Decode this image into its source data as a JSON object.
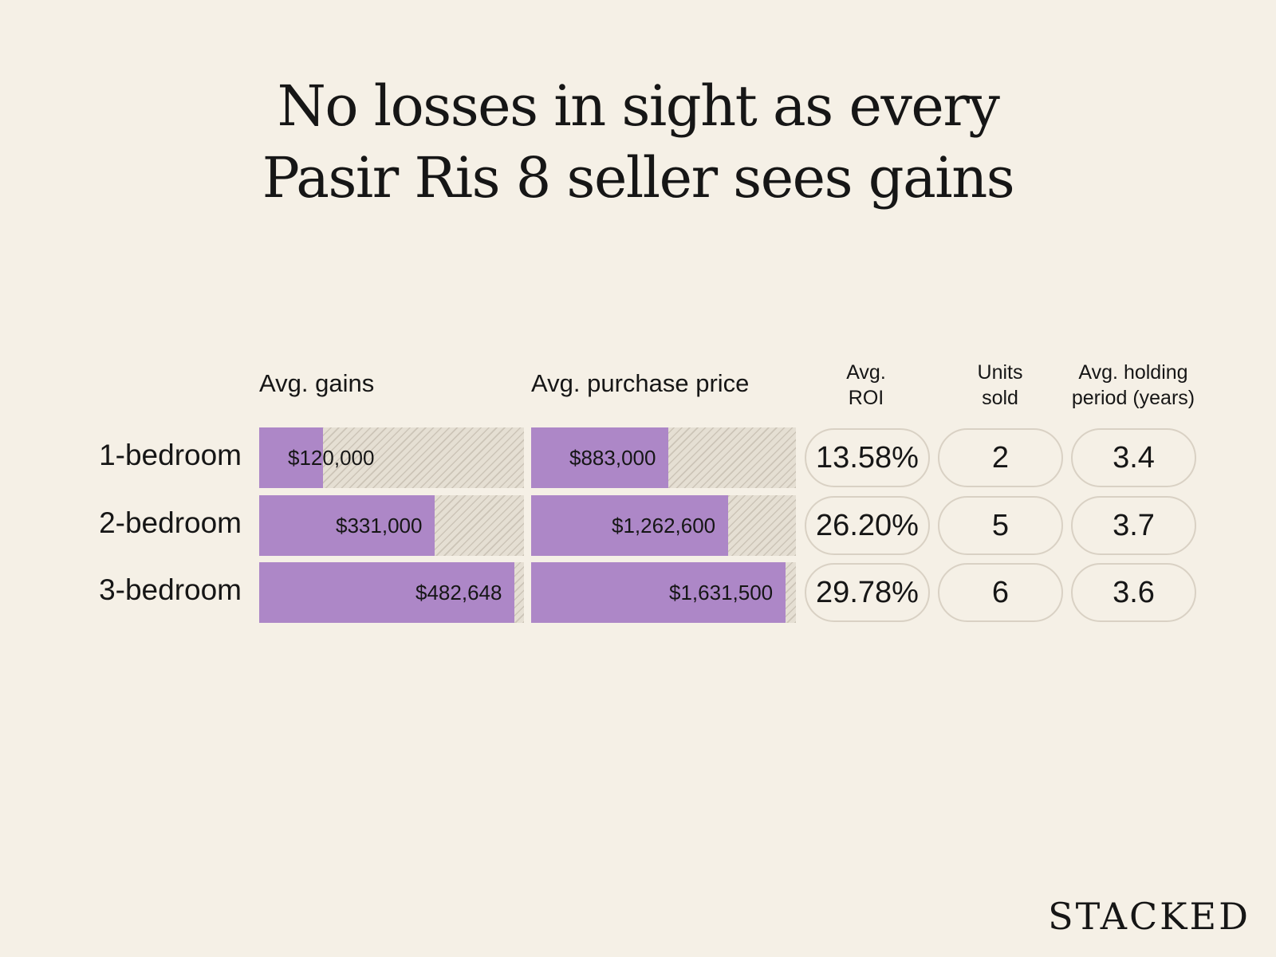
{
  "title_lines": [
    "No losses in sight as every",
    "Pasir Ris 8 seller sees gains"
  ],
  "brand": "STACKED",
  "chart_data": {
    "type": "table",
    "columns": {
      "gains": "Avg. gains",
      "purchase_price": "Avg. purchase price",
      "roi": "Avg.\nROI",
      "units": "Units\nsold",
      "holding": "Avg. holding\nperiod (years)"
    },
    "rows": [
      {
        "label": "1-bedroom",
        "gains": 120000,
        "gains_label": "$120,000",
        "purchase_price": 883000,
        "purchase_label": "$883,000",
        "roi": "13.58%",
        "units": "2",
        "holding": "3.4"
      },
      {
        "label": "2-bedroom",
        "gains": 331000,
        "gains_label": "$331,000",
        "purchase_price": 1262600,
        "purchase_label": "$1,262,600",
        "roi": "26.20%",
        "units": "5",
        "holding": "3.7"
      },
      {
        "label": "3-bedroom",
        "gains": 482648,
        "gains_label": "$482,648",
        "purchase_price": 1631500,
        "purchase_label": "$1,631,500",
        "roi": "29.78%",
        "units": "6",
        "holding": "3.6"
      }
    ],
    "gains_max": 500000,
    "purchase_max": 1700000,
    "bar_color": "#ad87c7"
  }
}
